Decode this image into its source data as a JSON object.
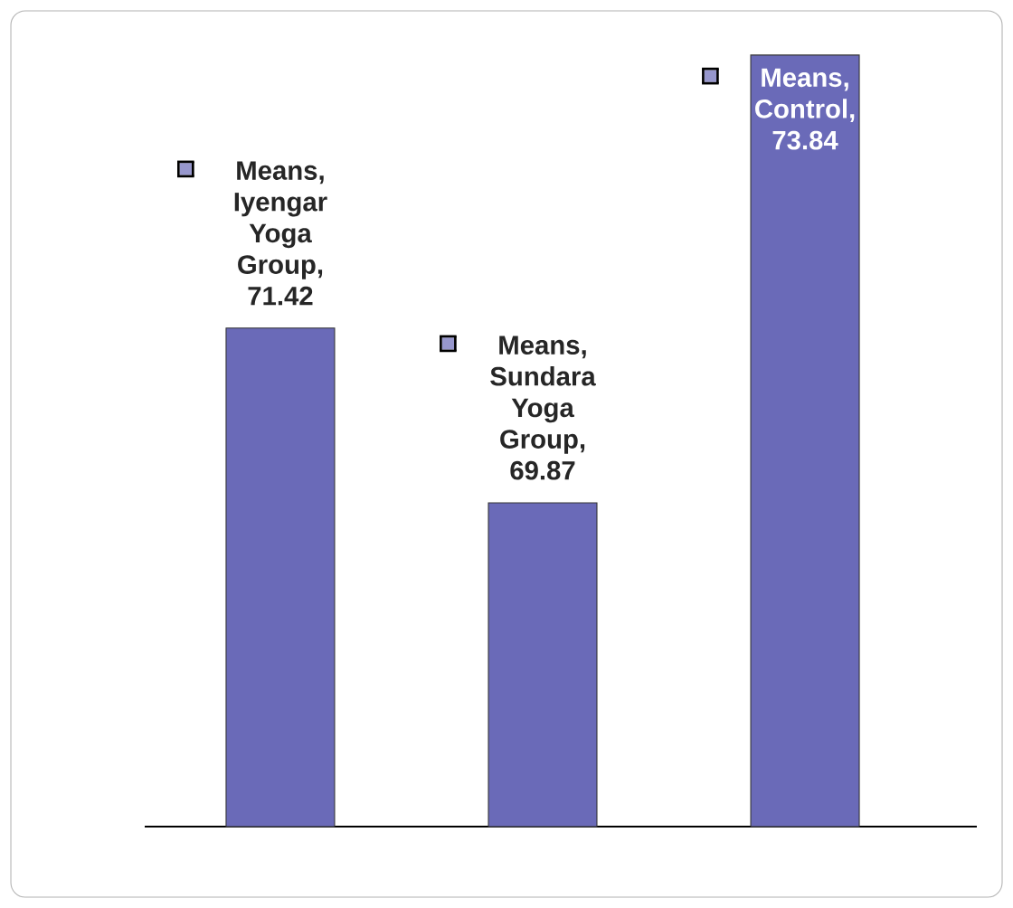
{
  "chart_data": {
    "type": "bar",
    "categories": [
      null,
      null,
      null
    ],
    "series": [
      {
        "color": "#6a6ab8",
        "values": [
          71.42,
          69.87,
          73.84
        ],
        "value_labels": [
          "Means, Iyengar Yoga Group, 71.42",
          "Means, Sundara Yoga Group, 69.87",
          "Means, Control, 73.84"
        ]
      }
    ],
    "ylim": [
      67,
      74.2
    ]
  }
}
